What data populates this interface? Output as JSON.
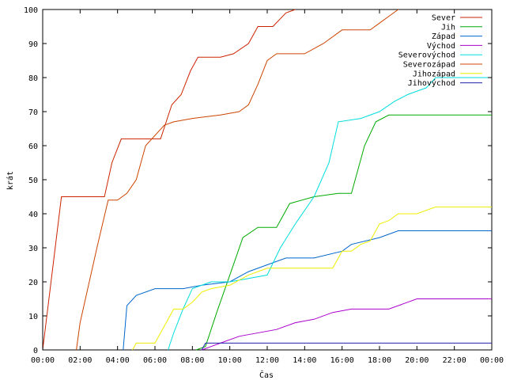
{
  "chart_data": {
    "type": "line",
    "xlabel": "Čas",
    "ylabel": "krát",
    "xlim": [
      0,
      24
    ],
    "ylim": [
      0,
      100
    ],
    "xticks": [
      0,
      2,
      4,
      6,
      8,
      10,
      12,
      14,
      16,
      18,
      20,
      22,
      24
    ],
    "xtick_labels": [
      "00:00",
      "02:00",
      "04:00",
      "06:00",
      "08:00",
      "10:00",
      "12:00",
      "14:00",
      "16:00",
      "18:00",
      "20:00",
      "22:00",
      "00:00"
    ],
    "yticks": [
      0,
      10,
      20,
      30,
      40,
      50,
      60,
      70,
      80,
      90,
      100
    ],
    "grid": false,
    "legend_position": "top-right",
    "series": [
      {
        "name": "Sever",
        "color": "#cc2200",
        "x": [
          0,
          1.0,
          1.8,
          3.3,
          3.7,
          4.2,
          6.3,
          6.9,
          7.4,
          7.9,
          8.3,
          9.5,
          10.2,
          11.0,
          11.5,
          12.3,
          13.0,
          13.5
        ],
        "y": [
          0,
          45,
          45,
          45,
          55,
          62,
          62,
          72,
          75,
          82,
          86,
          86,
          87,
          90,
          95,
          95,
          99,
          100
        ]
      },
      {
        "name": "Jih",
        "color": "#00aa00",
        "x": [
          8.2,
          8.7,
          9.3,
          10.0,
          10.7,
          11.5,
          12.5,
          13.2,
          14.5,
          15.8,
          16.5,
          17.2,
          17.8,
          18.5,
          20.0,
          24.0
        ],
        "y": [
          0,
          1,
          11,
          22,
          33,
          36,
          36,
          43,
          45,
          46,
          46,
          60,
          67,
          69,
          69,
          69
        ]
      },
      {
        "name": "Západ",
        "color": "#0066cc",
        "x": [
          4.3,
          4.5,
          5.0,
          6.0,
          7.5,
          8.5,
          10.0,
          11.0,
          12.0,
          13.0,
          14.5,
          16.0,
          16.5,
          18.0,
          19.0,
          24.0
        ],
        "y": [
          0,
          13,
          16,
          18,
          18,
          19,
          20,
          23,
          25,
          27,
          27,
          29,
          31,
          33,
          35,
          35
        ]
      },
      {
        "name": "Východ",
        "color": "#aa00cc",
        "x": [
          8.5,
          9.0,
          9.5,
          10.5,
          12.5,
          13.5,
          14.5,
          15.5,
          16.5,
          18.5,
          19.5,
          20.0,
          24.0
        ],
        "y": [
          0,
          1,
          2,
          4,
          6,
          8,
          9,
          11,
          12,
          12,
          14,
          15,
          15
        ]
      },
      {
        "name": "Severovýchod",
        "color": "#00dddd",
        "x": [
          6.7,
          7.0,
          7.5,
          8.0,
          9.0,
          10.0,
          11.0,
          12.0,
          12.7,
          13.5,
          14.5,
          15.3,
          15.8,
          17.0,
          18.0,
          18.8,
          19.5,
          20.5,
          21.0,
          24.0
        ],
        "y": [
          0,
          5,
          12,
          18,
          20,
          20,
          21,
          22,
          30,
          37,
          45,
          55,
          67,
          68,
          70,
          73,
          75,
          77,
          80,
          80
        ]
      },
      {
        "name": "Severozápad",
        "color": "#cc4400",
        "x": [
          1.8,
          2.0,
          2.9,
          3.5,
          4.0,
          4.5,
          5.0,
          5.5,
          6.5,
          7.0,
          8.0,
          9.5,
          10.5,
          11.0,
          11.5,
          12.0,
          12.5,
          13.0,
          14.0,
          15.0,
          16.0,
          17.5,
          18.0,
          18.5,
          19.0
        ],
        "y": [
          0,
          8,
          30,
          44,
          44,
          46,
          50,
          60,
          66,
          67,
          68,
          69,
          70,
          72,
          78,
          85,
          87,
          87,
          87,
          90,
          94,
          94,
          96,
          98,
          100
        ]
      },
      {
        "name": "Jihozápad",
        "color": "#eeee00",
        "x": [
          4.8,
          5.0,
          5.5,
          6.0,
          7.0,
          7.5,
          8.0,
          8.5,
          9.0,
          10.0,
          11.0,
          12.0,
          14.0,
          15.5,
          16.0,
          16.5,
          17.0,
          17.5,
          18.0,
          18.5,
          19.0,
          20.0,
          21.0,
          24.0
        ],
        "y": [
          0,
          2,
          2,
          2,
          12,
          12,
          14,
          17,
          18,
          19,
          22,
          24,
          24,
          24,
          29,
          29,
          31,
          32,
          37,
          38,
          40,
          40,
          42,
          42
        ]
      },
      {
        "name": "Jihovýchod",
        "color": "#2222aa",
        "x": [
          8.5,
          8.7,
          24.0
        ],
        "y": [
          0,
          2,
          2
        ]
      }
    ]
  }
}
